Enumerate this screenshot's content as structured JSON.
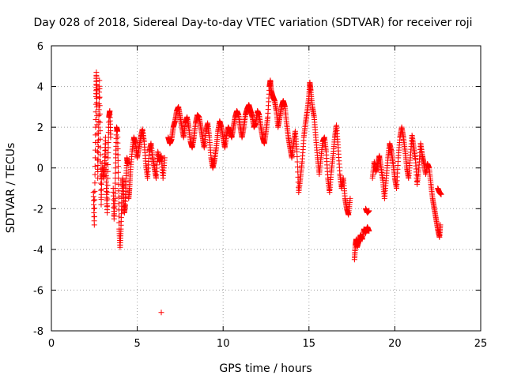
{
  "chart_data": {
    "type": "scatter",
    "title": "Day 028 of 2018, Sidereal Day-to-day VTEC variation (SDTVAR) for receiver roji",
    "xlabel": "GPS time / hours",
    "ylabel": "SDTVAR / TECUs",
    "xlim": [
      0,
      25
    ],
    "ylim": [
      -8,
      6
    ],
    "xticks": [
      0,
      5,
      10,
      15,
      20,
      25
    ],
    "yticks": [
      -8,
      -6,
      -4,
      -2,
      0,
      2,
      4,
      6
    ],
    "grid": true,
    "marker": "+",
    "series": [
      {
        "name": "SDTVAR",
        "color": "#ff0000",
        "segments": [
          [
            [
              2.45,
              -1.2
            ],
            [
              2.5,
              -2.8
            ],
            [
              2.55,
              0.5
            ],
            [
              2.6,
              3.5
            ],
            [
              2.62,
              4.7
            ],
            [
              2.65,
              3.0
            ],
            [
              2.7,
              -0.5
            ],
            [
              2.75,
              2.0
            ],
            [
              2.8,
              4.3
            ],
            [
              2.85,
              1.0
            ],
            [
              2.9,
              -1.8
            ],
            [
              2.95,
              0.2
            ]
          ],
          [
            [
              3.0,
              0.0
            ],
            [
              3.05,
              -0.5
            ],
            [
              3.1,
              0.2
            ],
            [
              3.15,
              1.5
            ],
            [
              3.2,
              -1.0
            ],
            [
              3.25,
              -2.2
            ],
            [
              3.3,
              0.5
            ],
            [
              3.35,
              2.5
            ],
            [
              3.4,
              2.8
            ],
            [
              3.45,
              1.5
            ]
          ],
          [
            [
              3.6,
              -1.0
            ],
            [
              3.65,
              -2.5
            ],
            [
              3.7,
              -1.5
            ],
            [
              3.75,
              0.5
            ],
            [
              3.8,
              2.0
            ],
            [
              3.85,
              1.8
            ],
            [
              3.9,
              -0.5
            ],
            [
              3.95,
              -3.0
            ],
            [
              4.0,
              -3.9
            ],
            [
              4.05,
              -3.0
            ],
            [
              4.1,
              -1.5
            ],
            [
              4.15,
              -0.5
            ],
            [
              4.2,
              -1.0
            ],
            [
              4.25,
              -2.2
            ],
            [
              4.3,
              -1.8
            ],
            [
              4.35,
              -0.5
            ],
            [
              4.4,
              0.5
            ],
            [
              4.45,
              0.2
            ]
          ],
          [
            [
              4.5,
              -1.5
            ],
            [
              4.55,
              -1.0
            ],
            [
              4.6,
              -0.2
            ],
            [
              4.7,
              0.8
            ],
            [
              4.8,
              1.5
            ],
            [
              4.9,
              1.2
            ],
            [
              5.0,
              0.5
            ],
            [
              5.1,
              1.0
            ],
            [
              5.2,
              1.5
            ],
            [
              5.3,
              1.9
            ],
            [
              5.4,
              1.3
            ],
            [
              5.5,
              0.2
            ],
            [
              5.6,
              -0.5
            ],
            [
              5.7,
              0.8
            ],
            [
              5.8,
              1.2
            ],
            [
              5.9,
              0.5
            ],
            [
              6.0,
              0.0
            ],
            [
              6.1,
              -0.5
            ],
            [
              6.2,
              0.8
            ],
            [
              6.3,
              0.3
            ],
            [
              6.4,
              0.6
            ],
            [
              6.5,
              -0.5
            ],
            [
              6.6,
              0.5
            ]
          ],
          [
            [
              6.4,
              -7.1
            ]
          ],
          [
            [
              6.8,
              1.5
            ],
            [
              6.9,
              1.2
            ],
            [
              7.0,
              1.4
            ],
            [
              7.1,
              2.0
            ],
            [
              7.2,
              2.3
            ],
            [
              7.3,
              2.8
            ],
            [
              7.4,
              3.0
            ],
            [
              7.5,
              2.5
            ],
            [
              7.6,
              2.0
            ],
            [
              7.7,
              1.5
            ],
            [
              7.8,
              2.2
            ],
            [
              7.9,
              2.5
            ],
            [
              8.0,
              2.0
            ],
            [
              8.1,
              1.3
            ],
            [
              8.2,
              1.0
            ],
            [
              8.3,
              1.5
            ],
            [
              8.4,
              2.2
            ],
            [
              8.5,
              2.6
            ],
            [
              8.6,
              2.5
            ],
            [
              8.7,
              2.0
            ],
            [
              8.8,
              1.5
            ],
            [
              8.9,
              1.0
            ],
            [
              9.0,
              1.8
            ],
            [
              9.1,
              2.2
            ],
            [
              9.2,
              1.5
            ],
            [
              9.3,
              0.5
            ],
            [
              9.4,
              0.0
            ],
            [
              9.5,
              0.4
            ],
            [
              9.6,
              1.0
            ],
            [
              9.7,
              1.8
            ],
            [
              9.8,
              2.3
            ],
            [
              9.9,
              2.0
            ],
            [
              10.0,
              1.5
            ],
            [
              10.1,
              1.0
            ],
            [
              10.2,
              1.6
            ],
            [
              10.3,
              2.0
            ],
            [
              10.4,
              1.8
            ],
            [
              10.5,
              1.5
            ],
            [
              10.6,
              2.0
            ],
            [
              10.7,
              2.5
            ],
            [
              10.8,
              2.8
            ],
            [
              10.9,
              2.6
            ],
            [
              11.0,
              2.0
            ],
            [
              11.1,
              1.5
            ],
            [
              11.2,
              2.0
            ],
            [
              11.3,
              2.6
            ],
            [
              11.4,
              2.9
            ],
            [
              11.5,
              3.1
            ],
            [
              11.6,
              2.8
            ],
            [
              11.7,
              2.5
            ],
            [
              11.8,
              2.0
            ],
            [
              11.9,
              2.2
            ],
            [
              12.0,
              2.8
            ],
            [
              12.1,
              2.6
            ],
            [
              12.2,
              2.0
            ],
            [
              12.3,
              1.5
            ],
            [
              12.4,
              1.2
            ],
            [
              12.5,
              1.8
            ],
            [
              12.6,
              2.5
            ],
            [
              12.7,
              4.0
            ],
            [
              12.75,
              4.3
            ],
            [
              12.8,
              3.8
            ],
            [
              12.9,
              3.5
            ],
            [
              13.0,
              3.3
            ],
            [
              13.1,
              2.8
            ],
            [
              13.2,
              2.0
            ],
            [
              13.3,
              2.5
            ],
            [
              13.4,
              3.0
            ],
            [
              13.5,
              3.3
            ],
            [
              13.6,
              3.0
            ],
            [
              13.7,
              2.2
            ],
            [
              13.8,
              1.5
            ],
            [
              13.9,
              1.0
            ],
            [
              14.0,
              0.5
            ],
            [
              14.1,
              1.2
            ],
            [
              14.2,
              1.8
            ],
            [
              14.3,
              0.8
            ],
            [
              14.4,
              -1.2
            ],
            [
              14.5,
              -0.5
            ],
            [
              14.6,
              0.3
            ],
            [
              14.7,
              1.5
            ],
            [
              14.8,
              2.2
            ],
            [
              14.9,
              2.8
            ],
            [
              15.0,
              3.5
            ],
            [
              15.05,
              4.2
            ],
            [
              15.1,
              3.8
            ],
            [
              15.2,
              3.0
            ],
            [
              15.3,
              2.5
            ],
            [
              15.4,
              1.5
            ],
            [
              15.5,
              0.5
            ],
            [
              15.6,
              -0.3
            ],
            [
              15.7,
              0.5
            ],
            [
              15.8,
              1.3
            ],
            [
              15.9,
              1.5
            ],
            [
              16.0,
              0.8
            ],
            [
              16.1,
              -0.5
            ],
            [
              16.2,
              -1.2
            ],
            [
              16.3,
              -0.2
            ],
            [
              16.4,
              0.6
            ],
            [
              16.5,
              1.5
            ],
            [
              16.6,
              2.1
            ],
            [
              16.7,
              1.0
            ],
            [
              16.8,
              -0.3
            ],
            [
              16.9,
              -1.0
            ],
            [
              17.0,
              -0.5
            ],
            [
              17.1,
              -1.5
            ],
            [
              17.2,
              -2.0
            ],
            [
              17.3,
              -2.3
            ],
            [
              17.4,
              -1.5
            ]
          ],
          [
            [
              17.65,
              -4.5
            ],
            [
              17.7,
              -3.8
            ],
            [
              17.75,
              -3.5
            ],
            [
              17.8,
              -3.9
            ],
            [
              17.9,
              -3.6
            ],
            [
              18.0,
              -3.3
            ],
            [
              18.1,
              -3.5
            ],
            [
              18.2,
              -3.0
            ],
            [
              18.3,
              -3.2
            ],
            [
              18.4,
              -2.9
            ],
            [
              18.5,
              -3.1
            ]
          ],
          [
            [
              18.3,
              -2.0
            ],
            [
              18.4,
              -2.2
            ],
            [
              18.5,
              -2.1
            ]
          ],
          [
            [
              18.7,
              -0.5
            ],
            [
              18.8,
              0.3
            ],
            [
              18.9,
              -0.2
            ],
            [
              19.0,
              0.2
            ],
            [
              19.1,
              0.6
            ],
            [
              19.2,
              0.0
            ],
            [
              19.3,
              -0.6
            ],
            [
              19.4,
              -1.5
            ],
            [
              19.5,
              -0.5
            ],
            [
              19.6,
              0.5
            ],
            [
              19.7,
              1.2
            ],
            [
              19.8,
              0.8
            ],
            [
              19.9,
              0.2
            ],
            [
              20.0,
              -0.5
            ],
            [
              20.1,
              -1.0
            ],
            [
              20.2,
              0.5
            ],
            [
              20.3,
              1.5
            ],
            [
              20.4,
              2.0
            ],
            [
              20.5,
              1.5
            ],
            [
              20.6,
              0.8
            ],
            [
              20.7,
              0.0
            ],
            [
              20.8,
              -0.5
            ],
            [
              20.9,
              0.5
            ],
            [
              21.0,
              1.6
            ],
            [
              21.1,
              1.0
            ],
            [
              21.2,
              0.4
            ],
            [
              21.3,
              -0.8
            ],
            [
              21.4,
              0.0
            ],
            [
              21.5,
              1.2
            ],
            [
              21.6,
              0.6
            ],
            [
              21.7,
              0.2
            ],
            [
              21.8,
              -0.3
            ],
            [
              21.9,
              0.2
            ],
            [
              22.0,
              0.0
            ],
            [
              22.1,
              -0.8
            ],
            [
              22.2,
              -1.5
            ],
            [
              22.3,
              -2.0
            ],
            [
              22.4,
              -2.5
            ],
            [
              22.5,
              -3.0
            ],
            [
              22.6,
              -3.4
            ],
            [
              22.65,
              -2.8
            ]
          ],
          [
            [
              22.5,
              -1.0
            ],
            [
              22.6,
              -1.2
            ],
            [
              22.7,
              -1.3
            ]
          ]
        ]
      }
    ]
  }
}
